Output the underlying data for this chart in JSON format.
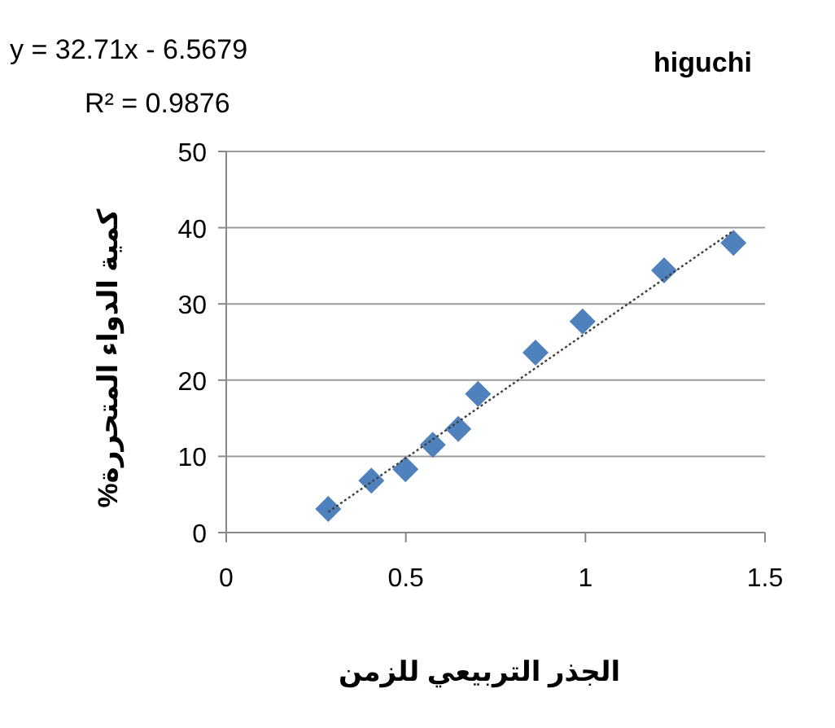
{
  "chart_data": {
    "type": "scatter",
    "title": "higuchi",
    "xlabel": "الجذر التربيعي للزمن",
    "ylabel": "كمية الدواء المتحررة%",
    "annotations": [
      "y = 32.71x - 6.5679",
      "R² = 0.9876"
    ],
    "x": [
      0.284,
      0.404,
      0.499,
      0.575,
      0.646,
      0.701,
      0.861,
      0.992,
      1.219,
      1.412
    ],
    "series": [
      {
        "color": "#4f81bd",
        "marker": "diamond",
        "values": [
          3.1,
          6.8,
          8.3,
          11.5,
          13.6,
          18.2,
          23.6,
          27.7,
          34.4,
          38.0
        ]
      },
      {
        "type": "line",
        "x": [
          0.284,
          1.412
        ],
        "values": [
          2.7,
          39.6
        ],
        "color": "#404040",
        "line_style": "dotted"
      }
    ],
    "xlim": [
      0,
      1.5
    ],
    "xticks": [
      0,
      0.5,
      1,
      1.5
    ],
    "ylim": [
      0,
      50
    ],
    "yticks": [
      0,
      10,
      20,
      30,
      40,
      50
    ],
    "grid": "y"
  }
}
